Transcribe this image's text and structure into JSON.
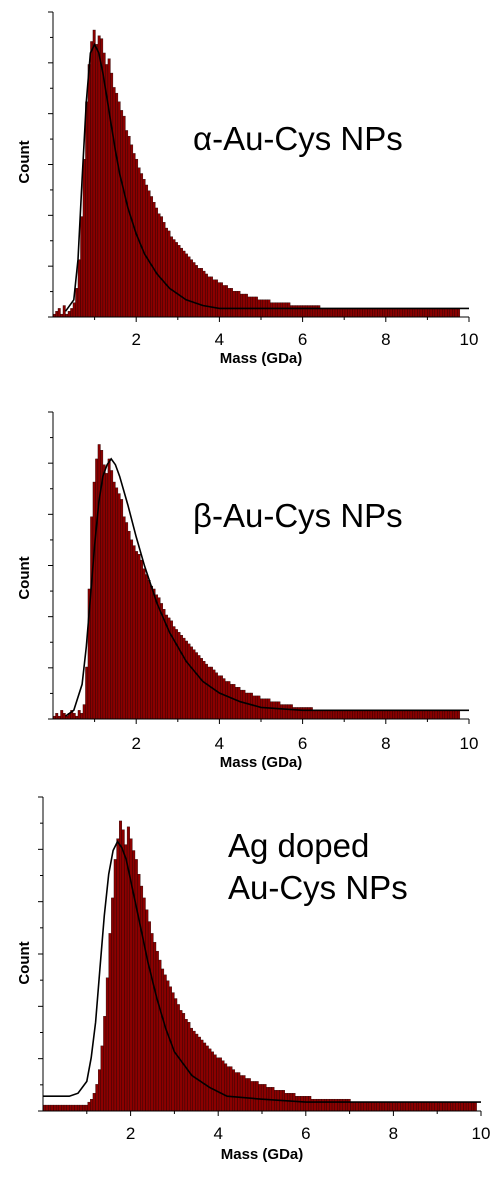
{
  "chart_data": [
    {
      "type": "bar",
      "overlay": "line",
      "ylabel": "Count",
      "xlabel": "Mass (GDa)",
      "annotation": "α-Au-Cys NPs",
      "xlim": [
        0,
        10
      ],
      "xticks": [
        "2",
        "4",
        "6",
        "8",
        "10"
      ],
      "ylim": [
        0,
        100
      ],
      "bar_color": "#8B0000",
      "fit_color": "#000000",
      "bins": {
        "x_start": 0.0,
        "width": 0.06,
        "values": [
          1,
          2,
          3,
          1,
          4,
          1,
          2,
          3,
          5,
          10,
          20,
          35,
          55,
          75,
          88,
          96,
          100,
          95,
          98,
          97,
          92,
          88,
          90,
          85,
          80,
          78,
          75,
          72,
          70,
          65,
          63,
          60,
          57,
          55,
          52,
          50,
          48,
          46,
          44,
          42,
          40,
          38,
          36,
          35,
          33,
          31,
          30,
          28,
          27,
          26,
          25,
          24,
          23,
          22,
          21,
          20,
          19,
          18,
          17,
          17,
          16,
          15,
          14,
          14,
          13,
          13,
          12,
          12,
          11,
          11,
          10,
          10,
          9,
          9,
          9,
          8,
          8,
          8,
          7,
          7,
          7,
          7,
          6,
          6,
          6,
          6,
          6,
          5,
          5,
          5,
          5,
          5,
          5,
          5,
          5,
          4,
          4,
          4,
          4,
          4,
          4,
          4,
          4,
          4,
          4,
          4,
          4,
          3,
          3,
          3,
          3,
          3,
          3,
          3,
          3,
          3,
          3,
          3,
          3,
          3,
          3,
          3,
          3,
          3,
          3,
          3,
          3,
          3,
          3,
          3,
          3,
          3,
          3,
          3,
          3,
          3,
          3,
          3,
          3,
          3,
          3,
          3,
          3,
          3,
          3,
          3,
          3,
          3,
          3,
          3,
          3,
          3,
          3,
          3,
          3,
          3,
          3,
          3,
          3,
          3,
          3,
          3,
          3
        ]
      },
      "fit": {
        "x": [
          0.3,
          0.5,
          0.6,
          0.7,
          0.8,
          0.9,
          1.0,
          1.1,
          1.2,
          1.3,
          1.4,
          1.5,
          1.6,
          1.8,
          2.0,
          2.2,
          2.5,
          2.8,
          3.2,
          3.6,
          4.0,
          5.0,
          6.0,
          7.0,
          8.0,
          9.0,
          10.0
        ],
        "y": [
          2,
          6,
          20,
          48,
          75,
          92,
          95,
          92,
          85,
          76,
          67,
          58,
          50,
          38,
          29,
          22,
          15,
          10,
          6,
          4,
          3,
          3,
          3,
          3,
          3,
          3,
          3
        ]
      }
    },
    {
      "type": "bar",
      "overlay": "line",
      "ylabel": "Count",
      "xlabel": "Mass (GDa)",
      "annotation": "β-Au-Cys NPs",
      "xlim": [
        0,
        10
      ],
      "xticks": [
        "2",
        "4",
        "6",
        "8",
        "10"
      ],
      "ylim": [
        0,
        100
      ],
      "bar_color": "#8B0000",
      "fit_color": "#000000",
      "bins": {
        "x_start": 0.0,
        "width": 0.06,
        "values": [
          1,
          2,
          1,
          3,
          2,
          1,
          2,
          3,
          2,
          1,
          3,
          2,
          5,
          18,
          45,
          70,
          82,
          90,
          95,
          93,
          88,
          85,
          90,
          86,
          82,
          80,
          78,
          76,
          70,
          68,
          65,
          62,
          60,
          58,
          57,
          55,
          52,
          50,
          48,
          46,
          45,
          43,
          42,
          40,
          38,
          36,
          35,
          34,
          32,
          31,
          30,
          29,
          28,
          27,
          26,
          25,
          24,
          23,
          22,
          21,
          20,
          19,
          18,
          18,
          17,
          16,
          15,
          15,
          14,
          13,
          13,
          12,
          12,
          11,
          11,
          10,
          10,
          9,
          9,
          9,
          8,
          8,
          8,
          7,
          7,
          7,
          7,
          6,
          6,
          6,
          6,
          5,
          5,
          5,
          5,
          5,
          4,
          4,
          4,
          4,
          4,
          4,
          4,
          4,
          3,
          3,
          3,
          3,
          3,
          3,
          3,
          3,
          3,
          3,
          3,
          3,
          3,
          3,
          3,
          3,
          3,
          3,
          3,
          3,
          3,
          3,
          3,
          3,
          3,
          3,
          3,
          3,
          3,
          3,
          3,
          3,
          3,
          3,
          3,
          3,
          3,
          3,
          3,
          3,
          3,
          3,
          3,
          3,
          3,
          3,
          3,
          3,
          3,
          3,
          3,
          3,
          3,
          3,
          3,
          3,
          3,
          3,
          3
        ]
      },
      "fit": {
        "x": [
          0.3,
          0.5,
          0.7,
          0.8,
          0.9,
          1.0,
          1.1,
          1.2,
          1.3,
          1.4,
          1.5,
          1.6,
          1.8,
          2.0,
          2.2,
          2.5,
          2.8,
          3.2,
          3.6,
          4.0,
          4.5,
          5.0,
          6.0,
          7.0,
          8.0,
          9.0,
          10.0
        ],
        "y": [
          1,
          3,
          12,
          25,
          42,
          60,
          75,
          84,
          88,
          90,
          88,
          84,
          74,
          63,
          53,
          40,
          30,
          20,
          13,
          9,
          6,
          4,
          3,
          3,
          3,
          3,
          3
        ]
      }
    },
    {
      "type": "bar",
      "overlay": "line",
      "ylabel": "Count",
      "xlabel": "Mass (GDa)",
      "annotation": [
        "Ag doped",
        "Au-Cys NPs"
      ],
      "xlim": [
        0,
        10
      ],
      "xticks": [
        "2",
        "4",
        "6",
        "8",
        "10"
      ],
      "ylim": [
        0,
        100
      ],
      "bar_color": "#8B0000",
      "fit_color": "#000000",
      "bins": {
        "x_start": 0.0,
        "width": 0.06,
        "values": [
          2,
          2,
          2,
          2,
          2,
          2,
          2,
          2,
          2,
          2,
          2,
          2,
          2,
          2,
          2,
          2,
          2,
          3,
          4,
          6,
          9,
          14,
          22,
          32,
          45,
          60,
          72,
          85,
          92,
          98,
          95,
          90,
          96,
          92,
          88,
          85,
          80,
          76,
          72,
          68,
          64,
          60,
          57,
          54,
          51,
          48,
          46,
          44,
          42,
          40,
          38,
          36,
          34,
          33,
          31,
          30,
          28,
          27,
          26,
          25,
          24,
          23,
          22,
          21,
          20,
          19,
          18,
          18,
          17,
          16,
          15,
          15,
          14,
          13,
          13,
          12,
          12,
          11,
          11,
          10,
          10,
          10,
          9,
          9,
          9,
          8,
          8,
          8,
          7,
          7,
          7,
          7,
          6,
          6,
          6,
          6,
          5,
          5,
          5,
          5,
          5,
          5,
          4,
          4,
          4,
          4,
          4,
          4,
          4,
          4,
          4,
          4,
          4,
          4,
          4,
          4,
          4,
          3,
          3,
          3,
          3,
          3,
          3,
          3,
          3,
          3,
          3,
          3,
          3,
          3,
          3,
          3,
          3,
          3,
          3,
          3,
          3,
          3,
          3,
          3,
          3,
          3,
          3,
          3,
          3,
          3,
          3,
          3,
          3,
          3,
          3,
          3,
          3,
          3,
          3,
          3,
          3,
          3,
          3,
          3,
          3,
          3,
          3,
          3,
          3
        ]
      },
      "fit": {
        "x": [
          0.0,
          0.3,
          0.6,
          0.8,
          1.0,
          1.1,
          1.2,
          1.3,
          1.4,
          1.5,
          1.6,
          1.7,
          1.8,
          1.9,
          2.0,
          2.2,
          2.4,
          2.6,
          2.8,
          3.0,
          3.4,
          3.8,
          4.2,
          5.0,
          6.0,
          7.0,
          8.0,
          9.0,
          10.0
        ],
        "y": [
          5,
          5,
          5,
          6,
          10,
          18,
          30,
          48,
          66,
          80,
          88,
          91,
          89,
          85,
          78,
          64,
          50,
          38,
          28,
          20,
          12,
          8,
          5,
          4,
          3,
          3,
          3,
          3,
          3
        ]
      }
    }
  ]
}
